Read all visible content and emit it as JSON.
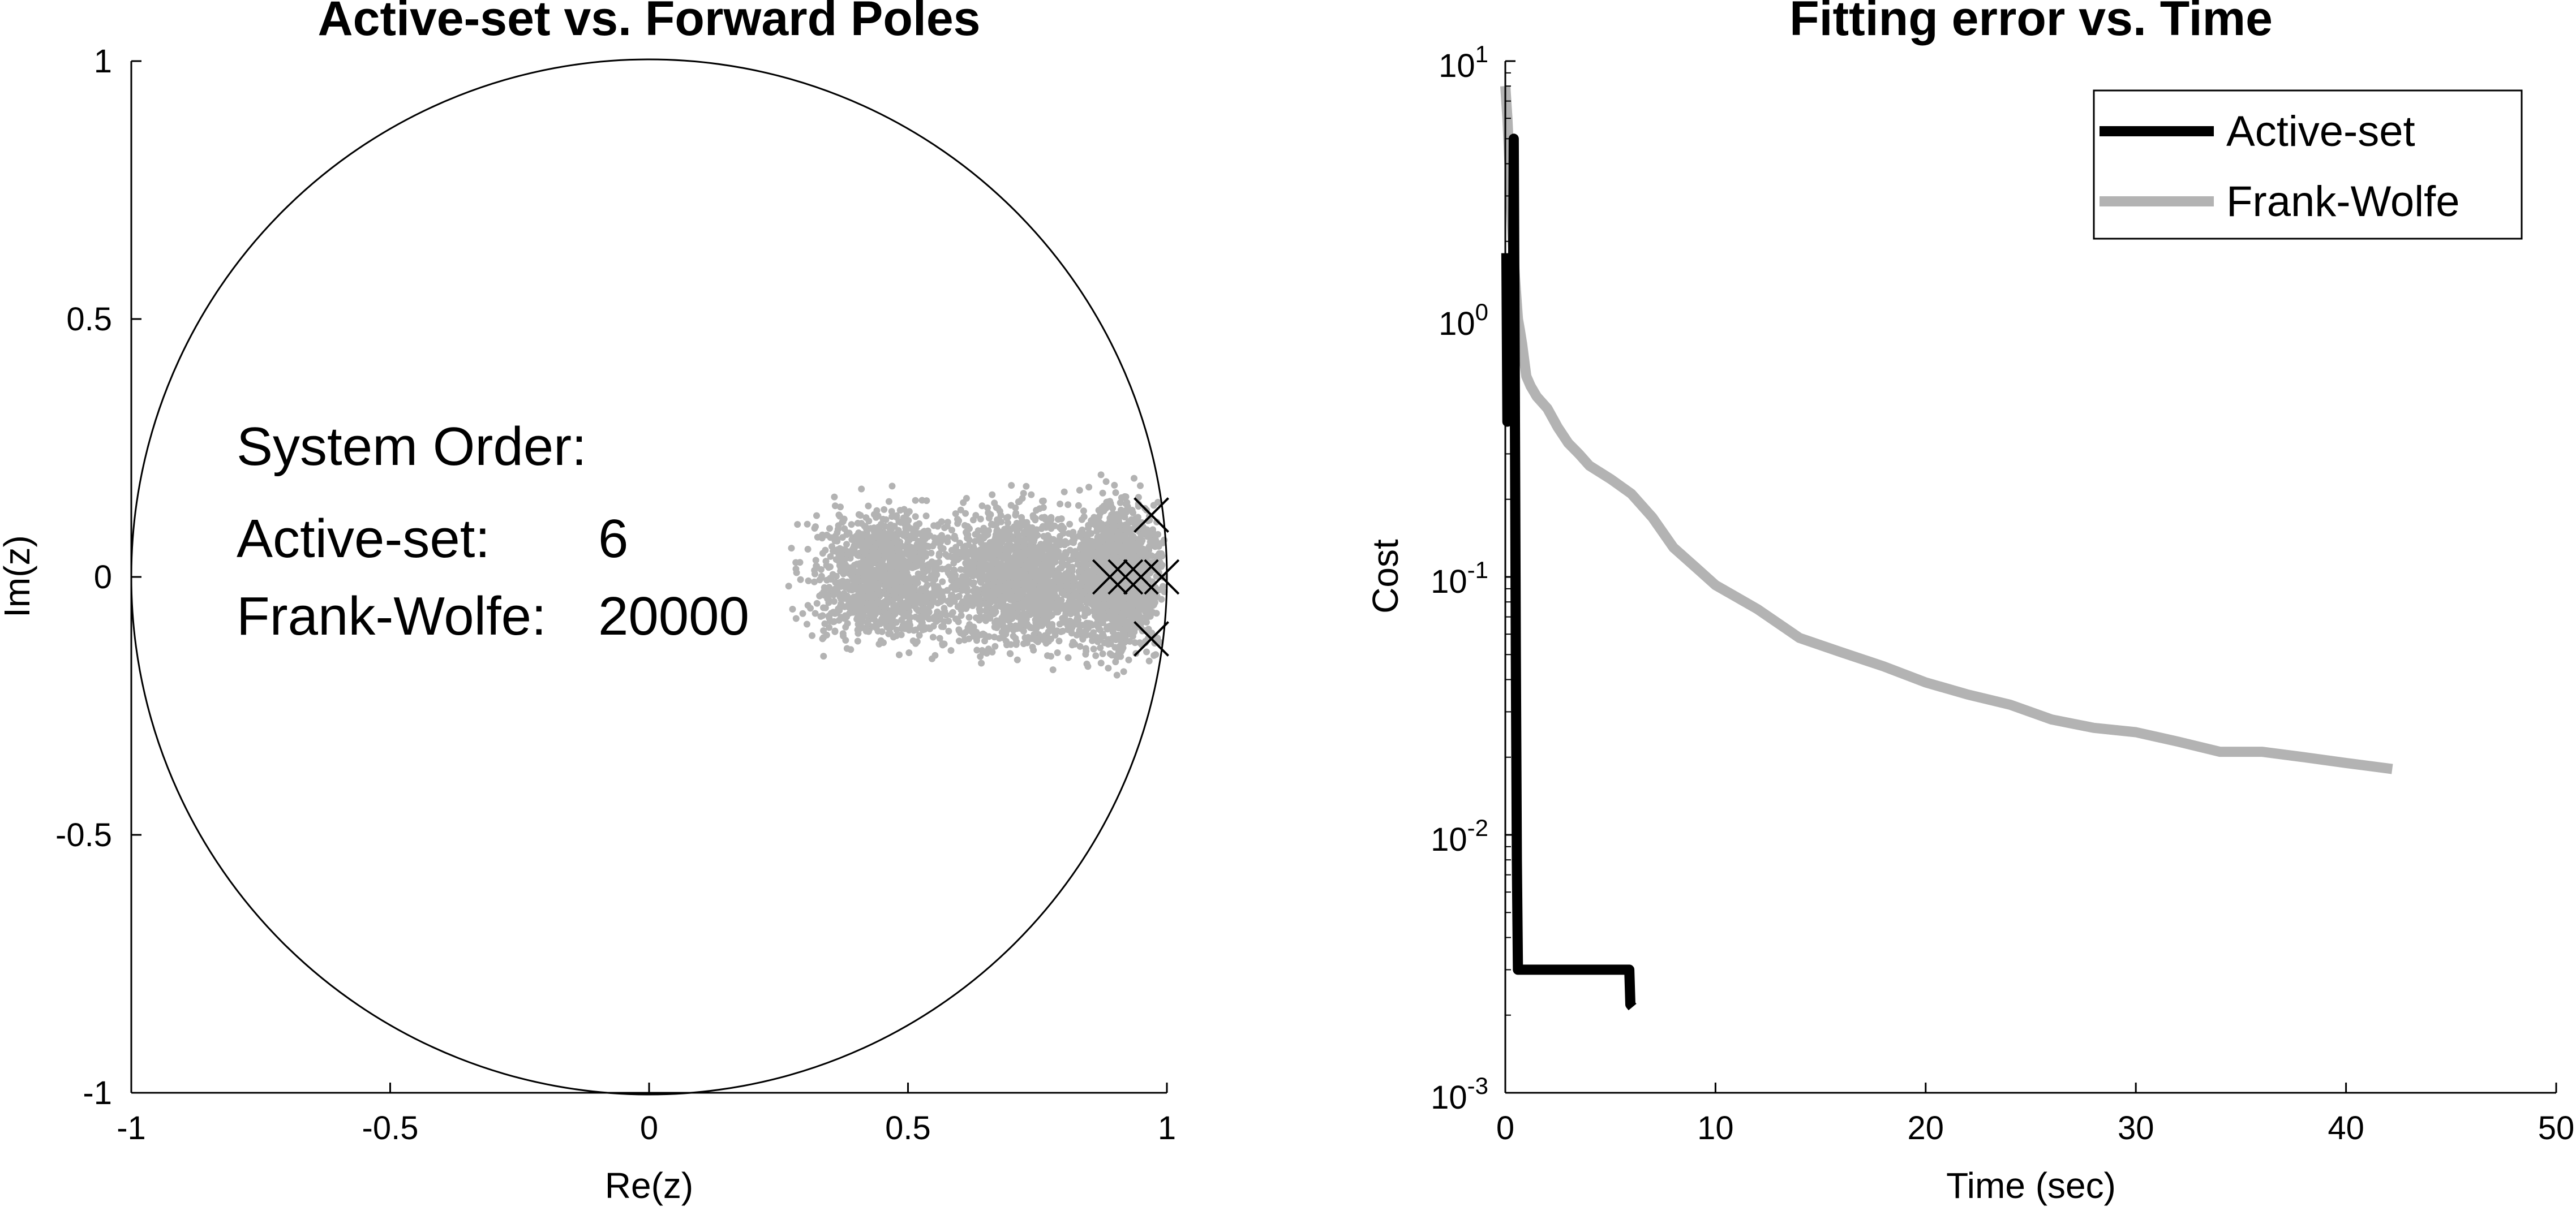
{
  "chart_data": [
    {
      "type": "scatter",
      "title": "Active-set vs. Forward Poles",
      "xlabel": "Re(z)",
      "ylabel": "Im(z)",
      "xlim": [
        -1,
        1
      ],
      "ylim": [
        -1,
        1
      ],
      "xticks": [
        -1,
        -0.5,
        0,
        0.5,
        1
      ],
      "xtick_labels": [
        "-1",
        "-0.5",
        "0",
        "0.5",
        "1"
      ],
      "yticks": [
        -1,
        -0.5,
        0,
        0.5,
        1
      ],
      "ytick_labels": [
        "-1",
        "-0.5",
        "0",
        "0.5",
        "1"
      ],
      "grid": false,
      "unit_circle": true,
      "annotation": {
        "heading": "System Order:",
        "rows": [
          {
            "label": "Active-set:",
            "value": "6"
          },
          {
            "label": "Frank-Wolfe:",
            "value": "20000"
          }
        ]
      },
      "series": [
        {
          "color": "#b3b3b3",
          "marker": "dot",
          "clusters": [
            {
              "cx": 0.46,
              "cy": 0.0,
              "sx": 0.07,
              "sy": 0.06,
              "n": 1300,
              "xmin": 0.24,
              "xmax": 0.62
            },
            {
              "cx": 0.72,
              "cy": 0.0,
              "sx": 0.07,
              "sy": 0.065,
              "n": 1500,
              "xmin": 0.58,
              "xmax": 0.86
            },
            {
              "cx": 0.91,
              "cy": 0.0,
              "sx": 0.04,
              "sy": 0.07,
              "n": 1400,
              "xmin": 0.83,
              "xmax": 0.995
            }
          ]
        },
        {
          "color": "#000000",
          "marker": "x",
          "points": [
            [
              0.97,
              0.12
            ],
            [
              0.97,
              -0.12
            ],
            [
              0.89,
              0.0
            ],
            [
              0.92,
              0.0
            ],
            [
              0.95,
              0.0
            ],
            [
              0.99,
              0.0
            ]
          ]
        }
      ]
    },
    {
      "type": "line",
      "title": "Fitting error vs. Time",
      "xlabel": "Time (sec)",
      "ylabel": "Cost",
      "xlim": [
        0,
        50
      ],
      "ylim": [
        0.001,
        10
      ],
      "yscale": "log",
      "xticks": [
        0,
        10,
        20,
        30,
        40,
        50
      ],
      "xtick_labels": [
        "0",
        "10",
        "20",
        "30",
        "40",
        "50"
      ],
      "yticks": [
        0.001,
        0.01,
        0.1,
        1,
        10
      ],
      "ytick_base": "10",
      "ytick_exponents": [
        "-3",
        "-2",
        "-1",
        "0",
        "1"
      ],
      "grid": false,
      "legend": "top-right",
      "series": [
        {
          "name": "Active-set",
          "color": "#000000",
          "points": [
            [
              0.05,
              1.8
            ],
            [
              0.1,
              0.4
            ],
            [
              0.15,
              1.5
            ],
            [
              0.2,
              0.8
            ],
            [
              0.25,
              1.2
            ],
            [
              0.3,
              0.5
            ],
            [
              0.35,
              0.6
            ],
            [
              0.4,
              5.0
            ],
            [
              0.45,
              0.6
            ],
            [
              0.5,
              0.05
            ],
            [
              0.55,
              0.008
            ],
            [
              0.6,
              0.003
            ],
            [
              1.0,
              0.003
            ],
            [
              3.0,
              0.003
            ],
            [
              5.9,
              0.003
            ],
            [
              5.95,
              0.0022
            ],
            [
              6.05,
              0.00215
            ]
          ]
        },
        {
          "name": "Frank-Wolfe",
          "color": "#b3b3b3",
          "points": [
            [
              0.0,
              8.0
            ],
            [
              0.1,
              6.0
            ],
            [
              0.2,
              4.0
            ],
            [
              0.3,
              2.5
            ],
            [
              0.4,
              1.7
            ],
            [
              0.5,
              1.3
            ],
            [
              0.6,
              1.0
            ],
            [
              0.7,
              0.9
            ],
            [
              0.8,
              0.8
            ],
            [
              1.0,
              0.6
            ],
            [
              1.2,
              0.55
            ],
            [
              1.5,
              0.5
            ],
            [
              2.0,
              0.45
            ],
            [
              2.5,
              0.38
            ],
            [
              3.0,
              0.33
            ],
            [
              3.5,
              0.3
            ],
            [
              4.0,
              0.27
            ],
            [
              5.0,
              0.24
            ],
            [
              6.0,
              0.21
            ],
            [
              7.0,
              0.17
            ],
            [
              8.0,
              0.13
            ],
            [
              9.0,
              0.11
            ],
            [
              10.0,
              0.093
            ],
            [
              12.0,
              0.075
            ],
            [
              14.0,
              0.058
            ],
            [
              16.0,
              0.051
            ],
            [
              18.0,
              0.045
            ],
            [
              20.0,
              0.039
            ],
            [
              22.0,
              0.035
            ],
            [
              24.0,
              0.032
            ],
            [
              26.0,
              0.028
            ],
            [
              28.0,
              0.026
            ],
            [
              30.0,
              0.025
            ],
            [
              32.0,
              0.023
            ],
            [
              34.0,
              0.021
            ],
            [
              36.0,
              0.021
            ],
            [
              38.0,
              0.02
            ],
            [
              40.0,
              0.019
            ],
            [
              42.2,
              0.018
            ]
          ]
        }
      ]
    }
  ]
}
